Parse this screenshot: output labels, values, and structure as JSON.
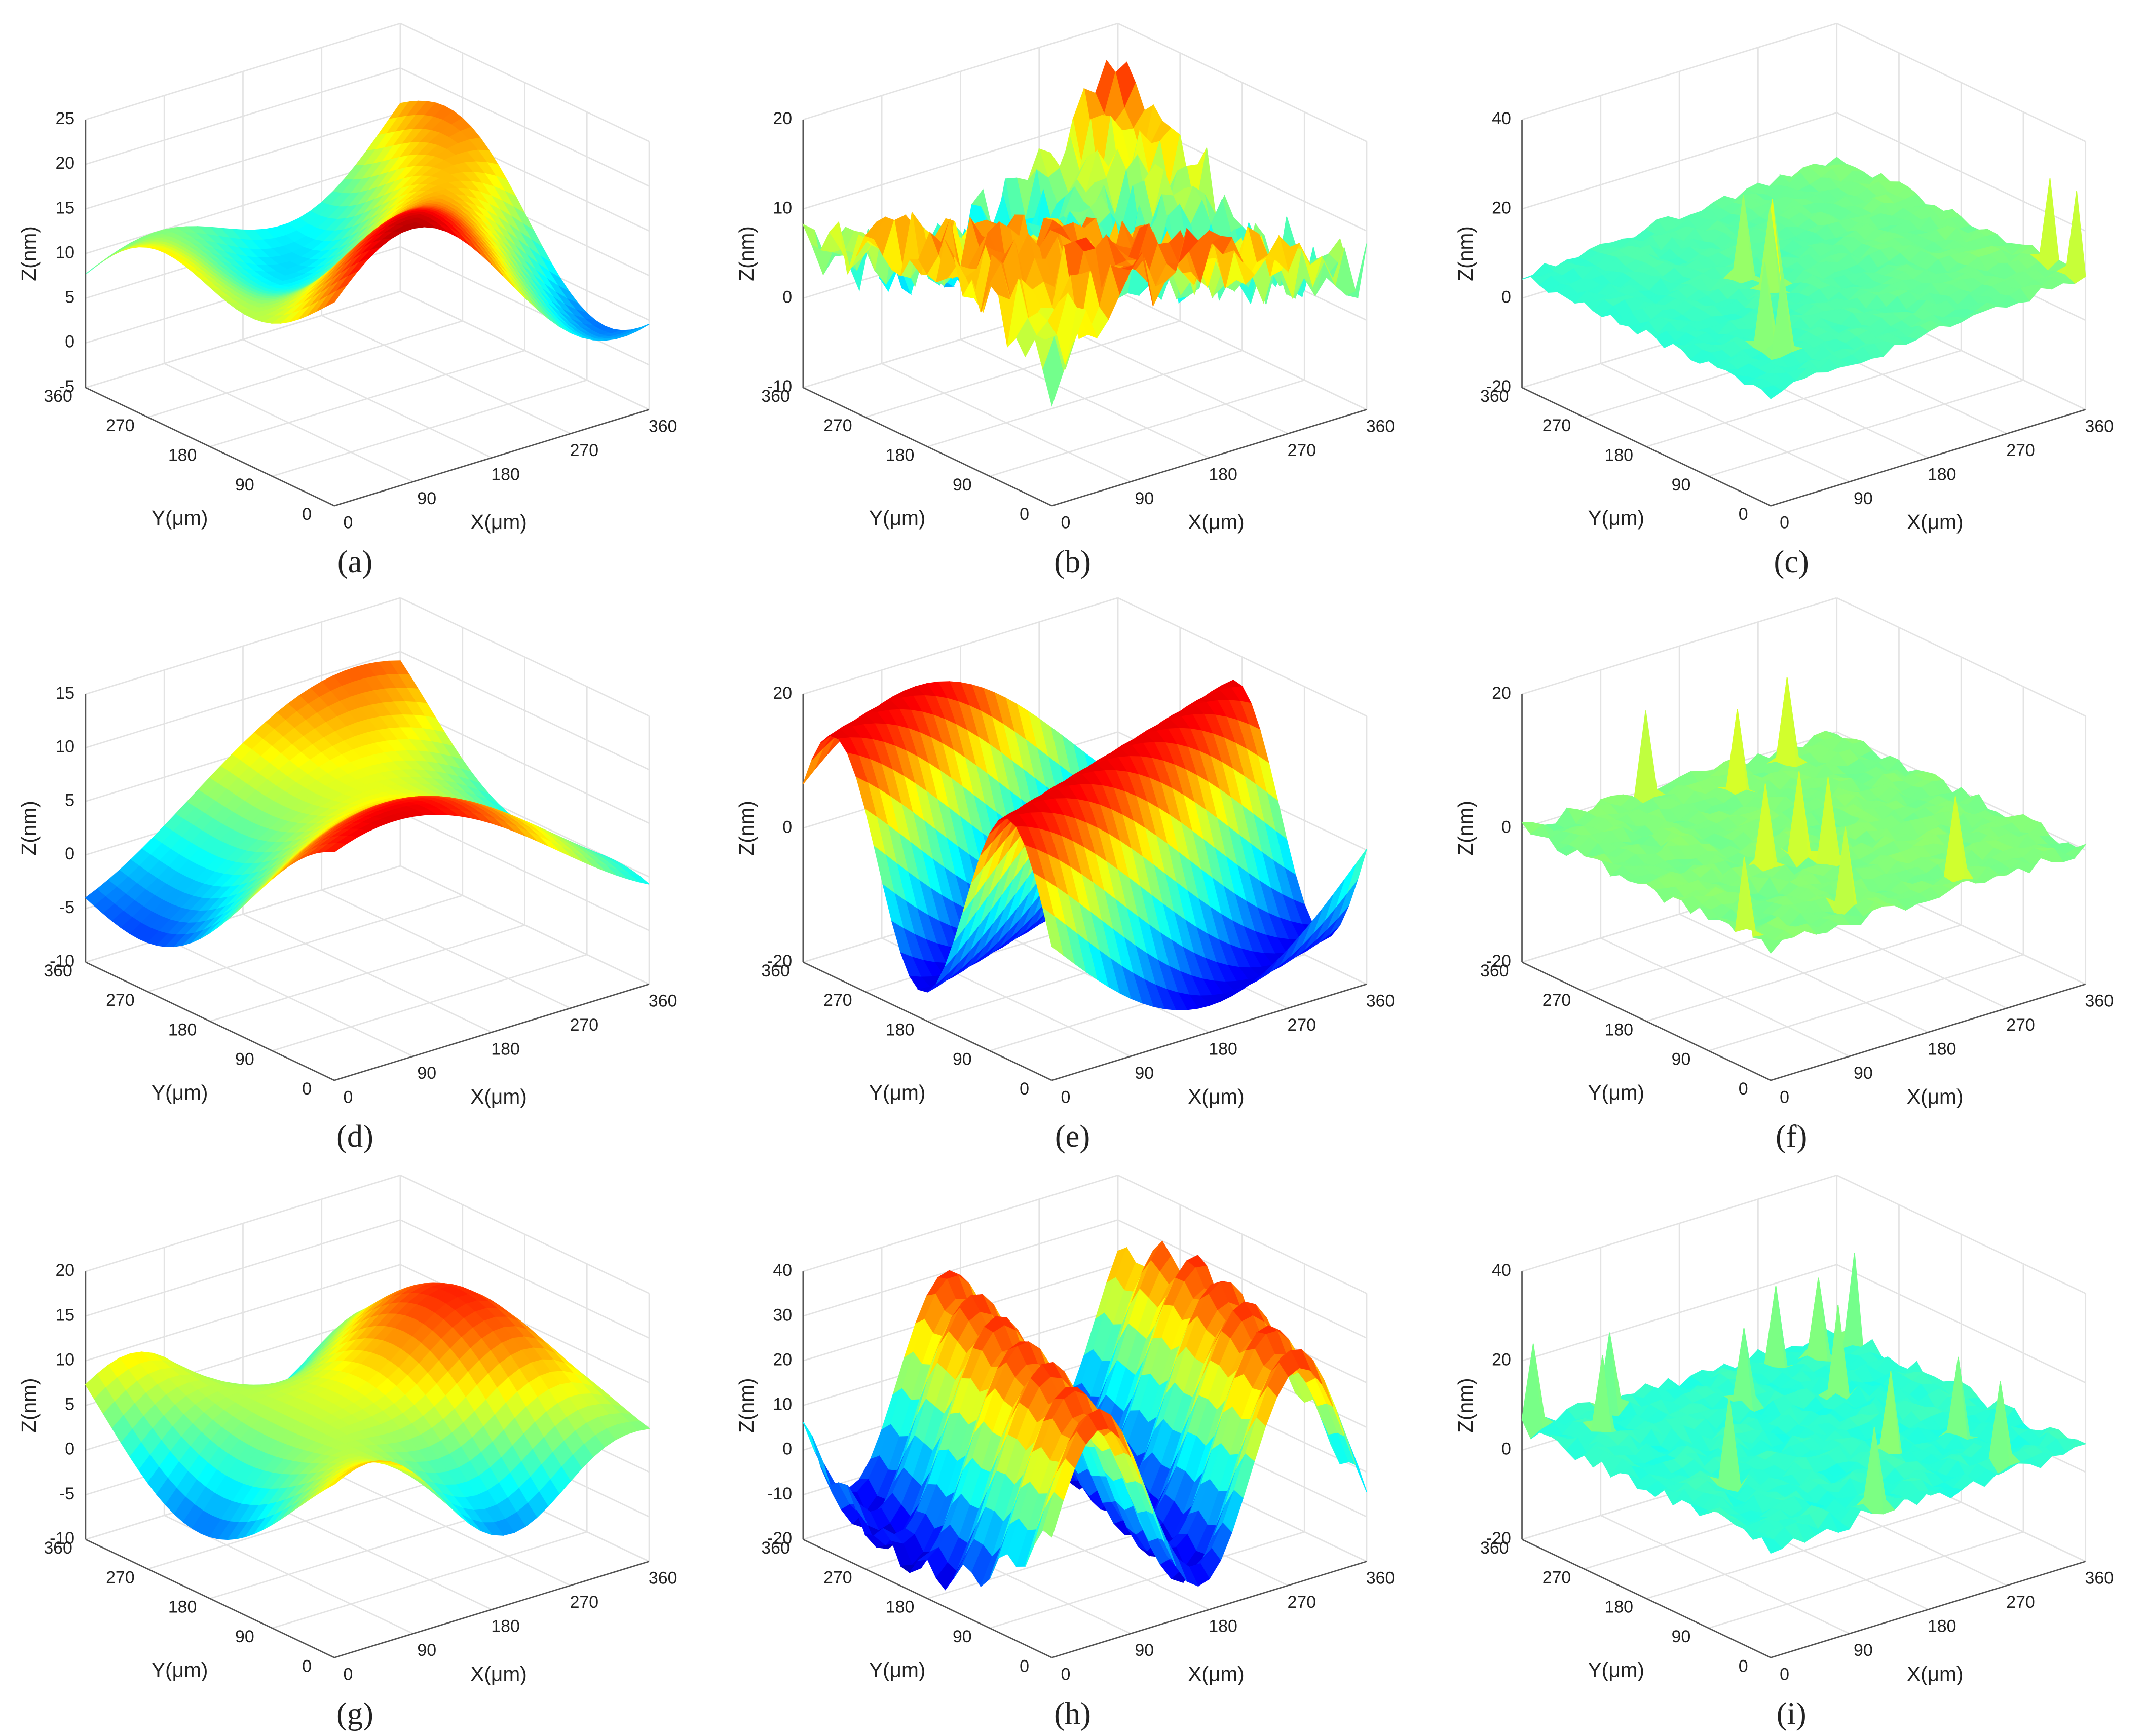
{
  "chart_data": [
    {
      "type": "surface",
      "label": "(a)",
      "xlabel": "X(μm)",
      "ylabel": "Y(μm)",
      "zlabel": "Z(nm)",
      "xlim": [
        0,
        360
      ],
      "ylim": [
        0,
        360
      ],
      "zlim": [
        -5,
        25
      ],
      "xticks": [
        0,
        90,
        180,
        270,
        360
      ],
      "yticks": [
        0,
        90,
        180,
        270,
        360
      ],
      "zticks": [
        -5,
        0,
        5,
        10,
        15,
        20,
        25
      ],
      "colormap": "jet",
      "grid": true
    },
    {
      "type": "surface",
      "label": "(b)",
      "xlabel": "X(μm)",
      "ylabel": "Y(μm)",
      "zlabel": "Z(nm)",
      "xlim": [
        0,
        360
      ],
      "ylim": [
        0,
        360
      ],
      "zlim": [
        -10,
        20
      ],
      "xticks": [
        0,
        90,
        180,
        270,
        360
      ],
      "yticks": [
        0,
        90,
        180,
        270,
        360
      ],
      "zticks": [
        -10,
        0,
        10,
        20
      ],
      "colormap": "jet",
      "grid": true
    },
    {
      "type": "surface",
      "label": "(c)",
      "xlabel": "X(μm)",
      "ylabel": "Y(μm)",
      "zlabel": "Z(nm)",
      "xlim": [
        0,
        360
      ],
      "ylim": [
        0,
        360
      ],
      "zlim": [
        -20,
        40
      ],
      "xticks": [
        0,
        90,
        180,
        270,
        360
      ],
      "yticks": [
        0,
        90,
        180,
        270,
        360
      ],
      "zticks": [
        -20,
        0,
        20,
        40
      ],
      "colormap": "jet",
      "grid": true
    },
    {
      "type": "surface",
      "label": "(d)",
      "xlabel": "X(μm)",
      "ylabel": "Y(μm)",
      "zlabel": "Z(nm)",
      "xlim": [
        0,
        360
      ],
      "ylim": [
        0,
        360
      ],
      "zlim": [
        -10,
        15
      ],
      "xticks": [
        0,
        90,
        180,
        270,
        360
      ],
      "yticks": [
        0,
        90,
        180,
        270,
        360
      ],
      "zticks": [
        -10,
        -5,
        0,
        5,
        10,
        15
      ],
      "colormap": "jet",
      "grid": true
    },
    {
      "type": "surface",
      "label": "(e)",
      "xlabel": "X(μm)",
      "ylabel": "Y(μm)",
      "zlabel": "Z(nm)",
      "xlim": [
        0,
        360
      ],
      "ylim": [
        0,
        360
      ],
      "zlim": [
        -20,
        20
      ],
      "xticks": [
        0,
        90,
        180,
        270,
        360
      ],
      "yticks": [
        0,
        90,
        180,
        270,
        360
      ],
      "zticks": [
        -20,
        0,
        20
      ],
      "colormap": "jet",
      "grid": true
    },
    {
      "type": "surface",
      "label": "(f)",
      "xlabel": "X(μm)",
      "ylabel": "Y(μm)",
      "zlabel": "Z(nm)",
      "xlim": [
        0,
        360
      ],
      "ylim": [
        0,
        360
      ],
      "zlim": [
        -20,
        20
      ],
      "xticks": [
        0,
        90,
        180,
        270,
        360
      ],
      "yticks": [
        0,
        90,
        180,
        270,
        360
      ],
      "zticks": [
        -20,
        0,
        20
      ],
      "colormap": "jet",
      "grid": true
    },
    {
      "type": "surface",
      "label": "(g)",
      "xlabel": "X(μm)",
      "ylabel": "Y(μm)",
      "zlabel": "Z(nm)",
      "xlim": [
        0,
        360
      ],
      "ylim": [
        0,
        360
      ],
      "zlim": [
        -10,
        20
      ],
      "xticks": [
        0,
        90,
        180,
        270,
        360
      ],
      "yticks": [
        0,
        90,
        180,
        270,
        360
      ],
      "zticks": [
        -10,
        -5,
        0,
        5,
        10,
        15,
        20
      ],
      "colormap": "jet",
      "grid": true
    },
    {
      "type": "surface",
      "label": "(h)",
      "xlabel": "X(μm)",
      "ylabel": "Y(μm)",
      "zlabel": "Z(nm)",
      "xlim": [
        0,
        360
      ],
      "ylim": [
        0,
        360
      ],
      "zlim": [
        -20,
        40
      ],
      "xticks": [
        0,
        90,
        180,
        270,
        360
      ],
      "yticks": [
        0,
        90,
        180,
        270,
        360
      ],
      "zticks": [
        -20,
        -10,
        0,
        10,
        20,
        30,
        40
      ],
      "colormap": "jet",
      "grid": true
    },
    {
      "type": "surface",
      "label": "(i)",
      "xlabel": "X(μm)",
      "ylabel": "Y(μm)",
      "zlabel": "Z(nm)",
      "xlim": [
        0,
        360
      ],
      "ylim": [
        0,
        360
      ],
      "zlim": [
        -20,
        40
      ],
      "xticks": [
        0,
        90,
        180,
        270,
        360
      ],
      "yticks": [
        0,
        90,
        180,
        270,
        360
      ],
      "zticks": [
        -20,
        0,
        20,
        40
      ],
      "colormap": "jet",
      "grid": true
    }
  ]
}
